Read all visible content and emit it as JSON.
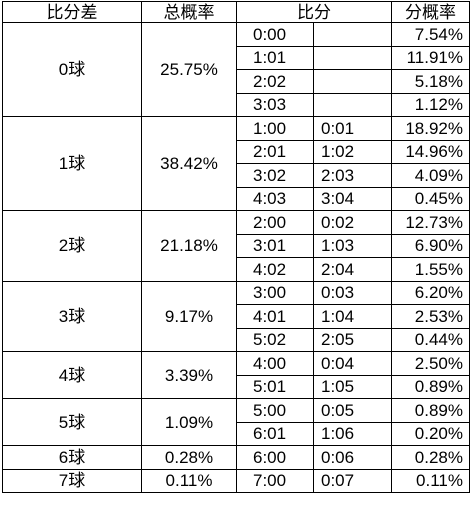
{
  "headers": {
    "diff": "比分差",
    "total_prob": "总概率",
    "score": "比分",
    "score_prob": "分概率"
  },
  "groups": [
    {
      "label": "0球",
      "total": "25.75%",
      "rows": [
        {
          "a": "0:00",
          "b": "",
          "p": "7.54%"
        },
        {
          "a": "1:01",
          "b": "",
          "p": "11.91%"
        },
        {
          "a": "2:02",
          "b": "",
          "p": "5.18%"
        },
        {
          "a": "3:03",
          "b": "",
          "p": "1.12%"
        }
      ]
    },
    {
      "label": "1球",
      "total": "38.42%",
      "rows": [
        {
          "a": "1:00",
          "b": "0:01",
          "p": "18.92%"
        },
        {
          "a": "2:01",
          "b": "1:02",
          "p": "14.96%"
        },
        {
          "a": "3:02",
          "b": "2:03",
          "p": "4.09%"
        },
        {
          "a": "4:03",
          "b": "3:04",
          "p": "0.45%"
        }
      ]
    },
    {
      "label": "2球",
      "total": "21.18%",
      "rows": [
        {
          "a": "2:00",
          "b": "0:02",
          "p": "12.73%"
        },
        {
          "a": "3:01",
          "b": "1:03",
          "p": "6.90%"
        },
        {
          "a": "4:02",
          "b": "2:04",
          "p": "1.55%"
        }
      ]
    },
    {
      "label": "3球",
      "total": "9.17%",
      "rows": [
        {
          "a": "3:00",
          "b": "0:03",
          "p": "6.20%"
        },
        {
          "a": "4:01",
          "b": "1:04",
          "p": "2.53%"
        },
        {
          "a": "5:02",
          "b": "2:05",
          "p": "0.44%"
        }
      ]
    },
    {
      "label": "4球",
      "total": "3.39%",
      "rows": [
        {
          "a": "4:00",
          "b": "0:04",
          "p": "2.50%"
        },
        {
          "a": "5:01",
          "b": "1:05",
          "p": "0.89%"
        }
      ]
    },
    {
      "label": "5球",
      "total": "1.09%",
      "rows": [
        {
          "a": "5:00",
          "b": "0:05",
          "p": "0.89%"
        },
        {
          "a": "6:01",
          "b": "1:06",
          "p": "0.20%"
        }
      ]
    },
    {
      "label": "6球",
      "total": "0.28%",
      "rows": [
        {
          "a": "6:00",
          "b": "0:06",
          "p": "0.28%"
        }
      ]
    },
    {
      "label": "7球",
      "total": "0.11%",
      "rows": [
        {
          "a": "7:00",
          "b": "0:07",
          "p": "0.11%"
        }
      ]
    }
  ]
}
